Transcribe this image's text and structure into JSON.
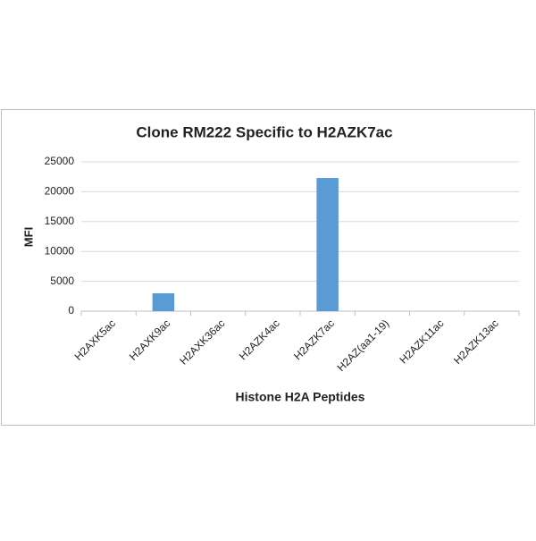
{
  "chart_data": {
    "type": "bar",
    "title": "Clone RM222 Specific to H2AZK7ac",
    "x_label": "Histone H2A Peptides",
    "y_label": "MFI",
    "categories": [
      "H2AXK5ac",
      "H2AXK9ac",
      "H2AXK36ac",
      "H2AZK4ac",
      "H2AZK7ac",
      "H2AZ(aa1-19)",
      "H2AZK11ac",
      "H2AZK13ac"
    ],
    "values": [
      0,
      3000,
      0,
      0,
      22300,
      0,
      0,
      0
    ],
    "color": "#5b9bd5",
    "ylim": [
      0,
      25000
    ],
    "yticks": [
      0,
      5000,
      10000,
      15000,
      20000,
      25000
    ],
    "grid": true
  }
}
